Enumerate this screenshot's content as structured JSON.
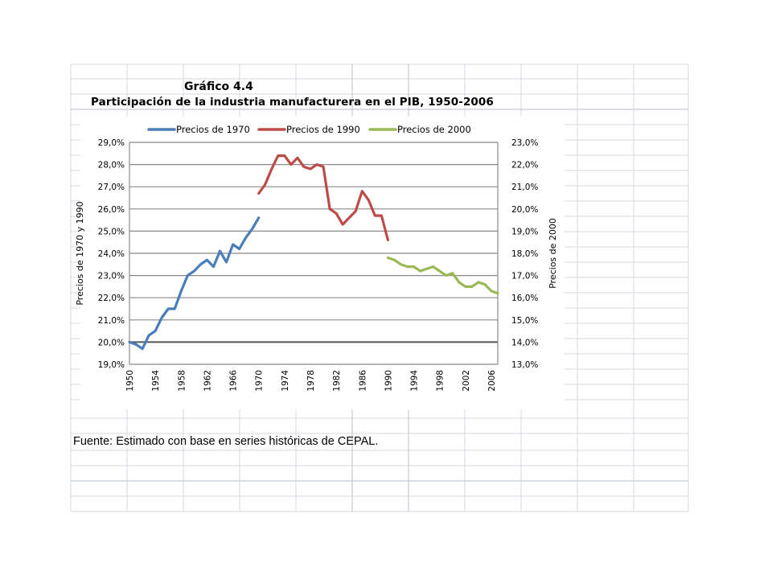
{
  "sheet": {
    "title_line1": "Gráfico 4.4",
    "title_line2": "Participación de la industria manufacturera en el PIB, 1950-2006",
    "source": "Fuente: Estimado con base en series históricas de CEPAL."
  },
  "chart_data": {
    "type": "line",
    "title": "",
    "ylabel": "Precios de 1970 y 1990",
    "y2label": "Precios de 2000",
    "xlim": [
      1950,
      2007
    ],
    "x_ticks": [
      1950,
      1954,
      1958,
      1962,
      1966,
      1970,
      1974,
      1978,
      1982,
      1986,
      1990,
      1994,
      1998,
      2002,
      2006
    ],
    "ylim": [
      19.0,
      29.0
    ],
    "y_ticks": [
      "19,0%",
      "20,0%",
      "21,0%",
      "22,0%",
      "23,0%",
      "24,0%",
      "25,0%",
      "26,0%",
      "27,0%",
      "28,0%",
      "29,0%"
    ],
    "y2lim": [
      13.0,
      23.0
    ],
    "y2_ticks": [
      "13,0%",
      "14,0%",
      "15,0%",
      "16,0%",
      "17,0%",
      "18,0%",
      "19,0%",
      "20,0%",
      "21,0%",
      "22,0%",
      "23,0%"
    ],
    "grid": true,
    "legend_position": "top",
    "series": [
      {
        "name": "Precios de 1970",
        "axis": "left",
        "color": "#4a7ebb",
        "x": [
          1950,
          1951,
          1952,
          1953,
          1954,
          1955,
          1956,
          1957,
          1958,
          1959,
          1960,
          1961,
          1962,
          1963,
          1964,
          1965,
          1966,
          1967,
          1968,
          1969,
          1970
        ],
        "values": [
          20.0,
          19.9,
          19.7,
          20.3,
          20.5,
          21.1,
          21.5,
          21.5,
          22.3,
          23.0,
          23.2,
          23.5,
          23.7,
          23.4,
          24.1,
          23.6,
          24.4,
          24.2,
          24.7,
          25.1,
          25.6
        ]
      },
      {
        "name": "Precios de 1990",
        "axis": "left",
        "color": "#be4b48",
        "x": [
          1970,
          1971,
          1972,
          1973,
          1974,
          1975,
          1976,
          1977,
          1978,
          1979,
          1980,
          1981,
          1982,
          1983,
          1984,
          1985,
          1986,
          1987,
          1988,
          1989,
          1990
        ],
        "values": [
          26.7,
          27.1,
          27.8,
          28.4,
          28.4,
          28.0,
          28.3,
          27.9,
          27.8,
          28.0,
          27.9,
          26.0,
          25.8,
          25.3,
          25.6,
          25.9,
          26.8,
          26.4,
          25.7,
          25.7,
          24.6
        ]
      },
      {
        "name": "Precios de 2000",
        "axis": "right",
        "color": "#98b954",
        "x": [
          1990,
          1991,
          1992,
          1993,
          1994,
          1995,
          1996,
          1997,
          1998,
          1999,
          2000,
          2001,
          2002,
          2003,
          2004,
          2005,
          2006,
          2007
        ],
        "values": [
          17.8,
          17.7,
          17.5,
          17.4,
          17.4,
          17.2,
          17.3,
          17.4,
          17.2,
          17.0,
          17.1,
          16.7,
          16.5,
          16.5,
          16.7,
          16.6,
          16.3,
          16.2
        ]
      }
    ]
  }
}
